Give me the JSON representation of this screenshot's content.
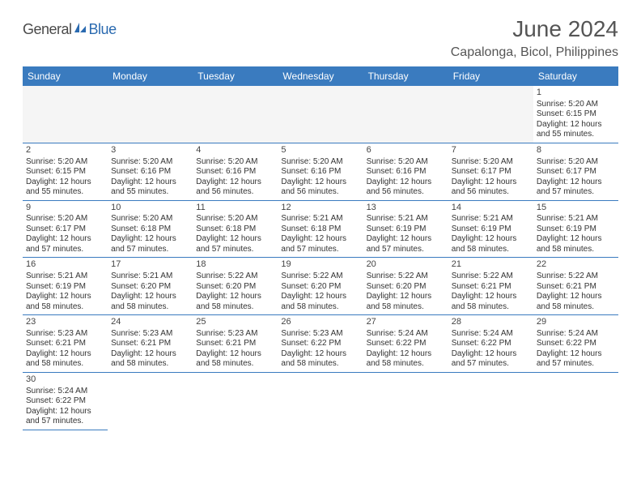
{
  "brand": {
    "part1": "General",
    "part2": "Blue"
  },
  "title": "June 2024",
  "location": "Capalonga, Bicol, Philippines",
  "colors": {
    "header_bg": "#3a7bbf",
    "header_text": "#ffffff",
    "border": "#3a7bbf",
    "empty_bg": "#f5f5f5",
    "title_color": "#555555",
    "text_color": "#333333",
    "brand_gray": "#4a4a4a",
    "brand_blue": "#2a6ab0"
  },
  "typography": {
    "title_fontsize": 28,
    "location_fontsize": 16,
    "dayheader_fontsize": 12,
    "cell_fontsize": 10,
    "daynum_fontsize": 11
  },
  "day_headers": [
    "Sunday",
    "Monday",
    "Tuesday",
    "Wednesday",
    "Thursday",
    "Friday",
    "Saturday"
  ],
  "weeks": [
    [
      null,
      null,
      null,
      null,
      null,
      null,
      {
        "day": "1",
        "sunrise": "Sunrise: 5:20 AM",
        "sunset": "Sunset: 6:15 PM",
        "daylight1": "Daylight: 12 hours",
        "daylight2": "and 55 minutes."
      }
    ],
    [
      {
        "day": "2",
        "sunrise": "Sunrise: 5:20 AM",
        "sunset": "Sunset: 6:15 PM",
        "daylight1": "Daylight: 12 hours",
        "daylight2": "and 55 minutes."
      },
      {
        "day": "3",
        "sunrise": "Sunrise: 5:20 AM",
        "sunset": "Sunset: 6:16 PM",
        "daylight1": "Daylight: 12 hours",
        "daylight2": "and 55 minutes."
      },
      {
        "day": "4",
        "sunrise": "Sunrise: 5:20 AM",
        "sunset": "Sunset: 6:16 PM",
        "daylight1": "Daylight: 12 hours",
        "daylight2": "and 56 minutes."
      },
      {
        "day": "5",
        "sunrise": "Sunrise: 5:20 AM",
        "sunset": "Sunset: 6:16 PM",
        "daylight1": "Daylight: 12 hours",
        "daylight2": "and 56 minutes."
      },
      {
        "day": "6",
        "sunrise": "Sunrise: 5:20 AM",
        "sunset": "Sunset: 6:16 PM",
        "daylight1": "Daylight: 12 hours",
        "daylight2": "and 56 minutes."
      },
      {
        "day": "7",
        "sunrise": "Sunrise: 5:20 AM",
        "sunset": "Sunset: 6:17 PM",
        "daylight1": "Daylight: 12 hours",
        "daylight2": "and 56 minutes."
      },
      {
        "day": "8",
        "sunrise": "Sunrise: 5:20 AM",
        "sunset": "Sunset: 6:17 PM",
        "daylight1": "Daylight: 12 hours",
        "daylight2": "and 57 minutes."
      }
    ],
    [
      {
        "day": "9",
        "sunrise": "Sunrise: 5:20 AM",
        "sunset": "Sunset: 6:17 PM",
        "daylight1": "Daylight: 12 hours",
        "daylight2": "and 57 minutes."
      },
      {
        "day": "10",
        "sunrise": "Sunrise: 5:20 AM",
        "sunset": "Sunset: 6:18 PM",
        "daylight1": "Daylight: 12 hours",
        "daylight2": "and 57 minutes."
      },
      {
        "day": "11",
        "sunrise": "Sunrise: 5:20 AM",
        "sunset": "Sunset: 6:18 PM",
        "daylight1": "Daylight: 12 hours",
        "daylight2": "and 57 minutes."
      },
      {
        "day": "12",
        "sunrise": "Sunrise: 5:21 AM",
        "sunset": "Sunset: 6:18 PM",
        "daylight1": "Daylight: 12 hours",
        "daylight2": "and 57 minutes."
      },
      {
        "day": "13",
        "sunrise": "Sunrise: 5:21 AM",
        "sunset": "Sunset: 6:19 PM",
        "daylight1": "Daylight: 12 hours",
        "daylight2": "and 57 minutes."
      },
      {
        "day": "14",
        "sunrise": "Sunrise: 5:21 AM",
        "sunset": "Sunset: 6:19 PM",
        "daylight1": "Daylight: 12 hours",
        "daylight2": "and 58 minutes."
      },
      {
        "day": "15",
        "sunrise": "Sunrise: 5:21 AM",
        "sunset": "Sunset: 6:19 PM",
        "daylight1": "Daylight: 12 hours",
        "daylight2": "and 58 minutes."
      }
    ],
    [
      {
        "day": "16",
        "sunrise": "Sunrise: 5:21 AM",
        "sunset": "Sunset: 6:19 PM",
        "daylight1": "Daylight: 12 hours",
        "daylight2": "and 58 minutes."
      },
      {
        "day": "17",
        "sunrise": "Sunrise: 5:21 AM",
        "sunset": "Sunset: 6:20 PM",
        "daylight1": "Daylight: 12 hours",
        "daylight2": "and 58 minutes."
      },
      {
        "day": "18",
        "sunrise": "Sunrise: 5:22 AM",
        "sunset": "Sunset: 6:20 PM",
        "daylight1": "Daylight: 12 hours",
        "daylight2": "and 58 minutes."
      },
      {
        "day": "19",
        "sunrise": "Sunrise: 5:22 AM",
        "sunset": "Sunset: 6:20 PM",
        "daylight1": "Daylight: 12 hours",
        "daylight2": "and 58 minutes."
      },
      {
        "day": "20",
        "sunrise": "Sunrise: 5:22 AM",
        "sunset": "Sunset: 6:20 PM",
        "daylight1": "Daylight: 12 hours",
        "daylight2": "and 58 minutes."
      },
      {
        "day": "21",
        "sunrise": "Sunrise: 5:22 AM",
        "sunset": "Sunset: 6:21 PM",
        "daylight1": "Daylight: 12 hours",
        "daylight2": "and 58 minutes."
      },
      {
        "day": "22",
        "sunrise": "Sunrise: 5:22 AM",
        "sunset": "Sunset: 6:21 PM",
        "daylight1": "Daylight: 12 hours",
        "daylight2": "and 58 minutes."
      }
    ],
    [
      {
        "day": "23",
        "sunrise": "Sunrise: 5:23 AM",
        "sunset": "Sunset: 6:21 PM",
        "daylight1": "Daylight: 12 hours",
        "daylight2": "and 58 minutes."
      },
      {
        "day": "24",
        "sunrise": "Sunrise: 5:23 AM",
        "sunset": "Sunset: 6:21 PM",
        "daylight1": "Daylight: 12 hours",
        "daylight2": "and 58 minutes."
      },
      {
        "day": "25",
        "sunrise": "Sunrise: 5:23 AM",
        "sunset": "Sunset: 6:21 PM",
        "daylight1": "Daylight: 12 hours",
        "daylight2": "and 58 minutes."
      },
      {
        "day": "26",
        "sunrise": "Sunrise: 5:23 AM",
        "sunset": "Sunset: 6:22 PM",
        "daylight1": "Daylight: 12 hours",
        "daylight2": "and 58 minutes."
      },
      {
        "day": "27",
        "sunrise": "Sunrise: 5:24 AM",
        "sunset": "Sunset: 6:22 PM",
        "daylight1": "Daylight: 12 hours",
        "daylight2": "and 58 minutes."
      },
      {
        "day": "28",
        "sunrise": "Sunrise: 5:24 AM",
        "sunset": "Sunset: 6:22 PM",
        "daylight1": "Daylight: 12 hours",
        "daylight2": "and 57 minutes."
      },
      {
        "day": "29",
        "sunrise": "Sunrise: 5:24 AM",
        "sunset": "Sunset: 6:22 PM",
        "daylight1": "Daylight: 12 hours",
        "daylight2": "and 57 minutes."
      }
    ],
    [
      {
        "day": "30",
        "sunrise": "Sunrise: 5:24 AM",
        "sunset": "Sunset: 6:22 PM",
        "daylight1": "Daylight: 12 hours",
        "daylight2": "and 57 minutes."
      },
      null,
      null,
      null,
      null,
      null,
      null
    ]
  ]
}
